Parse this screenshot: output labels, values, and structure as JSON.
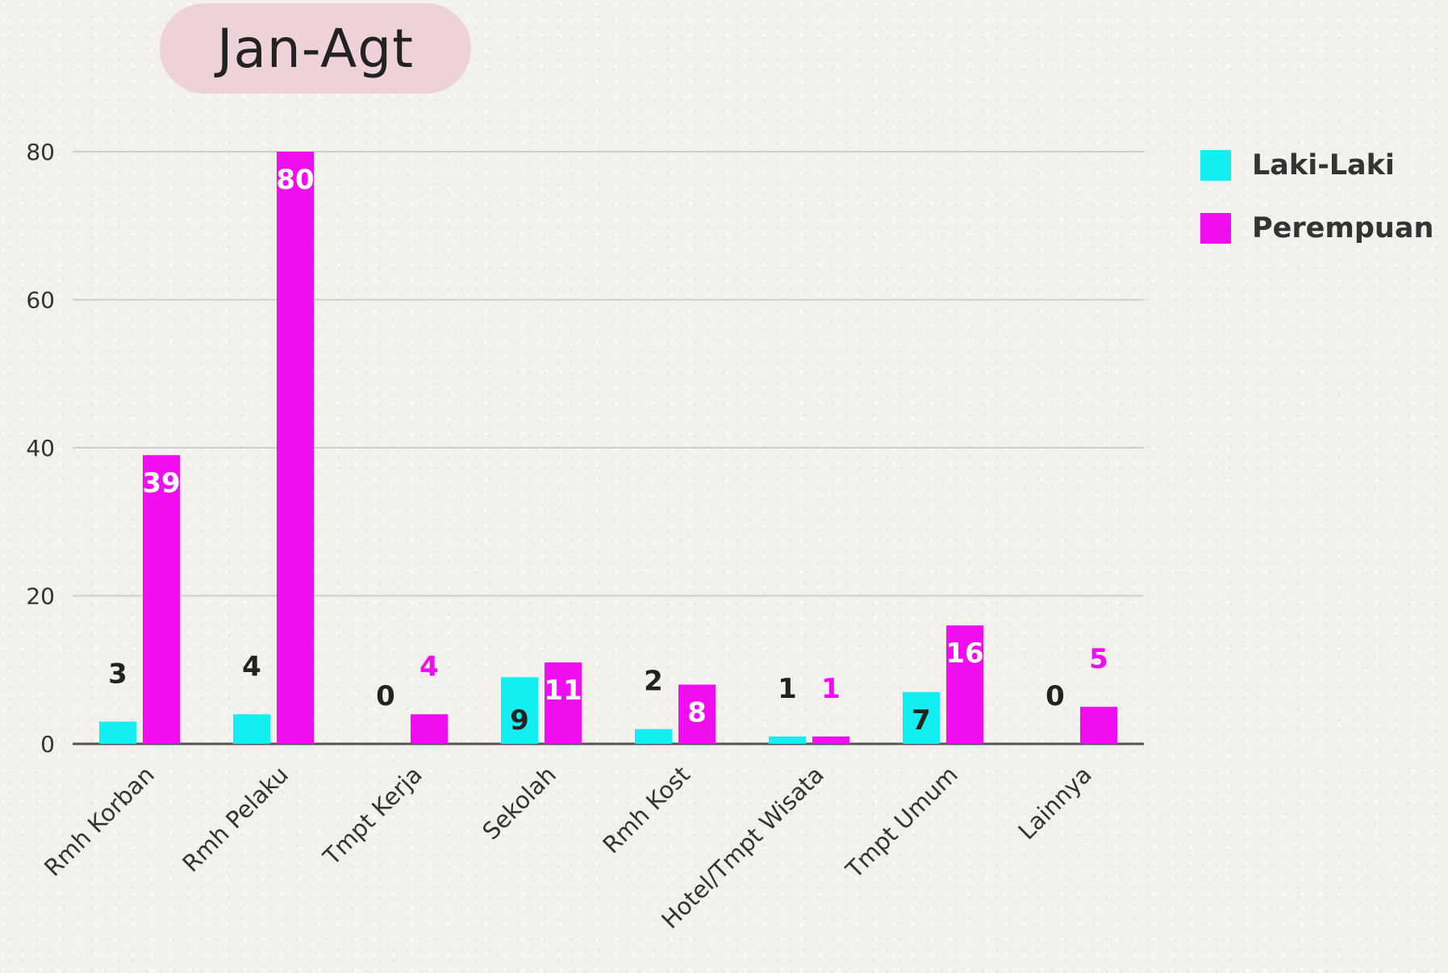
{
  "chart_data": {
    "type": "bar",
    "title": "Jan-Agt",
    "categories": [
      "Rmh Korban",
      "Rmh Pelaku",
      "Tmpt Kerja",
      "Sekolah",
      "Rmh Kost",
      "Hotel/Tmpt Wisata",
      "Tmpt Umum",
      "Lainnya"
    ],
    "series": [
      {
        "name": "Laki-Laki",
        "color": "#13eef0",
        "values": [
          3,
          4,
          0,
          9,
          2,
          1,
          7,
          0
        ]
      },
      {
        "name": "Perempuan",
        "color": "#f00ef0",
        "values": [
          39,
          80,
          4,
          11,
          8,
          1,
          16,
          5
        ]
      }
    ],
    "yticks": [
      0,
      20,
      40,
      60,
      80
    ],
    "ylim": [
      0,
      80
    ],
    "xlabel": "",
    "ylabel": "",
    "grid": true,
    "legend": "top-right"
  }
}
